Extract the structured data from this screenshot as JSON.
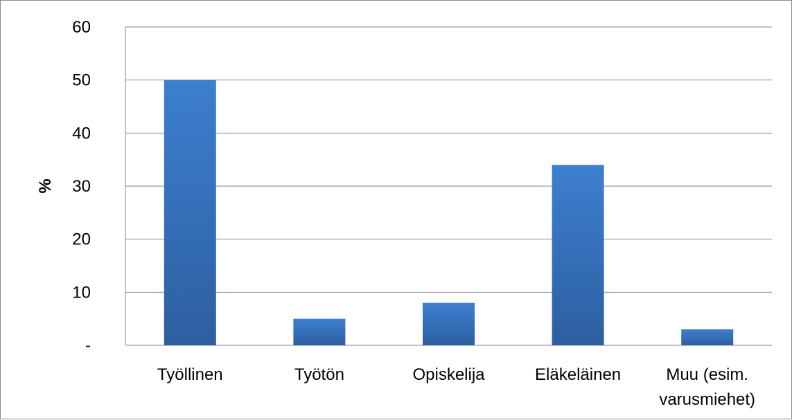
{
  "chart_data": {
    "type": "bar",
    "title": "",
    "xlabel": "",
    "ylabel": "%",
    "categories": [
      [
        "Työllinen"
      ],
      [
        "Työtön"
      ],
      [
        "Opiskelija"
      ],
      [
        "Eläkeläinen"
      ],
      [
        "Muu (esim.",
        "varusmiehet)"
      ]
    ],
    "values": [
      50,
      5,
      8,
      34,
      3
    ],
    "ylim": [
      0,
      60
    ],
    "yticks": [
      0,
      10,
      20,
      30,
      40,
      50,
      60
    ],
    "ytick_labels": [
      "-",
      "10",
      "20",
      "30",
      "40",
      "50",
      "60"
    ],
    "grid": true,
    "legend": "none",
    "colors": {
      "bar_top": "#3d7fd0",
      "bar_bottom": "#2d5fa0",
      "grid": "#868686",
      "frame": "#8c8c8c"
    }
  }
}
